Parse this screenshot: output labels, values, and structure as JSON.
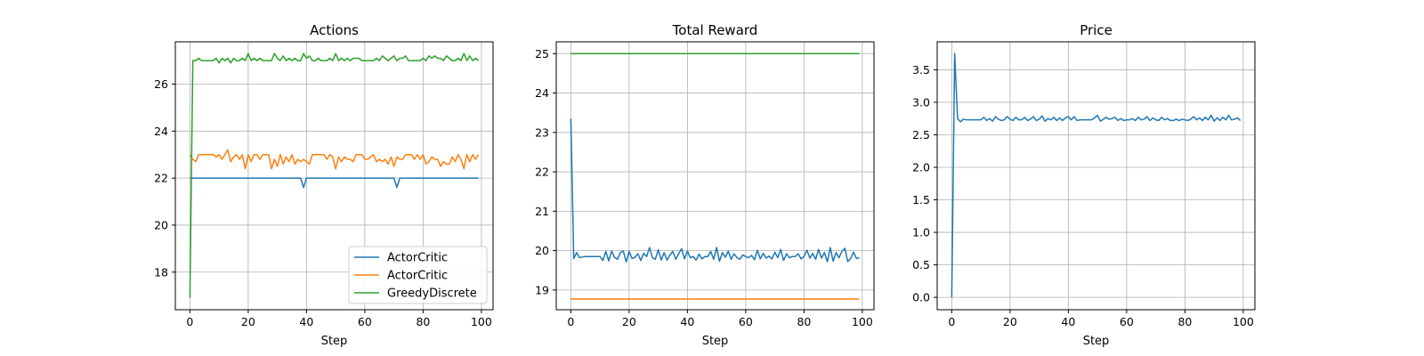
{
  "chart_data": [
    {
      "type": "line",
      "title": "Actions",
      "xlabel": "Step",
      "ylabel": "",
      "xlim": [
        -5,
        104
      ],
      "ylim": [
        16.4,
        27.8
      ],
      "xticks": [
        0,
        20,
        40,
        60,
        80,
        100
      ],
      "yticks": [
        18,
        20,
        22,
        24,
        26
      ],
      "grid": true,
      "legend": "lower-right",
      "series": [
        {
          "name": "ActorCritic",
          "color": "#1f77b4",
          "base": 22.0,
          "x": [
            0,
            1,
            2,
            3,
            4,
            5,
            6,
            7,
            8,
            9,
            10,
            11,
            12,
            13,
            14,
            15,
            16,
            17,
            18,
            19,
            20,
            21,
            22,
            23,
            24,
            25,
            26,
            27,
            28,
            29,
            30,
            31,
            32,
            33,
            34,
            35,
            36,
            37,
            38,
            39,
            40,
            41,
            42,
            43,
            44,
            45,
            46,
            47,
            48,
            49,
            50,
            51,
            52,
            53,
            54,
            55,
            56,
            57,
            58,
            59,
            60,
            61,
            62,
            63,
            64,
            65,
            66,
            67,
            68,
            69,
            70,
            71,
            72,
            73,
            74,
            75,
            76,
            77,
            78,
            79,
            80,
            81,
            82,
            83,
            84,
            85,
            86,
            87,
            88,
            89,
            90,
            91,
            92,
            93,
            94,
            95,
            96,
            97,
            98,
            99
          ],
          "deviations": {
            "39": 21.6,
            "71": 21.6
          }
        },
        {
          "name": "ActorCritic",
          "color": "#ff7f0e",
          "base": 23.0,
          "deviations": {
            "1": 22.8,
            "2": 22.7,
            "9": 22.9,
            "11": 22.8,
            "13": 23.2,
            "14": 22.7,
            "15": 22.9,
            "17": 22.8,
            "19": 22.4,
            "20": 23.0,
            "21": 22.7,
            "24": 22.8,
            "28": 22.4,
            "29": 22.8,
            "30": 22.5,
            "31": 23.0,
            "32": 22.6,
            "33": 22.9,
            "34": 22.7,
            "36": 22.6,
            "37": 22.8,
            "38": 22.7,
            "39": 22.8,
            "40": 22.7,
            "41": 22.6,
            "47": 22.8,
            "49": 22.9,
            "50": 22.4,
            "51": 22.9,
            "52": 22.7,
            "53": 22.9,
            "54": 22.8,
            "55": 22.8,
            "56": 22.7,
            "60": 22.8,
            "61": 22.8,
            "62": 22.9,
            "64": 22.7,
            "65": 22.8,
            "66": 22.7,
            "67": 22.8,
            "68": 22.6,
            "69": 22.9,
            "70": 22.5,
            "71": 22.9,
            "72": 22.8,
            "73": 22.8,
            "77": 22.8,
            "79": 22.8,
            "81": 22.6,
            "82": 22.7,
            "83": 22.9,
            "84": 22.8,
            "85": 22.8,
            "86": 22.5,
            "87": 22.7,
            "88": 22.6,
            "89": 22.6,
            "90": 22.9,
            "91": 22.7,
            "93": 22.8,
            "94": 22.4,
            "96": 22.7,
            "97": 23.0,
            "98": 22.8
          }
        },
        {
          "name": "GreedyDiscrete",
          "color": "#2ca02c",
          "base": 27.0,
          "deviations": {
            "0": 16.9,
            "2": 27.0,
            "3": 27.1,
            "8": 27.0,
            "9": 27.1,
            "10": 26.9,
            "11": 27.1,
            "12": 27.0,
            "13": 27.1,
            "14": 26.9,
            "15": 27.1,
            "16": 27.0,
            "18": 27.1,
            "20": 27.3,
            "21": 27.0,
            "22": 27.1,
            "24": 27.1,
            "25": 27.0,
            "29": 27.3,
            "30": 27.1,
            "31": 27.0,
            "32": 27.2,
            "33": 27.0,
            "34": 27.1,
            "35": 27.0,
            "36": 27.1,
            "39": 27.3,
            "40": 27.1,
            "41": 27.2,
            "42": 27.0,
            "44": 27.1,
            "48": 27.1,
            "50": 27.3,
            "51": 27.0,
            "52": 27.1,
            "54": 27.1,
            "55": 27.0,
            "56": 27.1,
            "57": 27.1,
            "58": 27.1,
            "64": 27.1,
            "65": 27.0,
            "66": 27.2,
            "67": 27.1,
            "68": 27.0,
            "69": 27.1,
            "70": 27.2,
            "71": 27.0,
            "72": 27.1,
            "73": 27.1,
            "74": 27.2,
            "75": 27.0,
            "77": 27.0,
            "80": 27.1,
            "81": 27.0,
            "82": 27.2,
            "83": 27.1,
            "84": 27.2,
            "85": 27.1,
            "86": 27.1,
            "87": 27.0,
            "88": 27.2,
            "89": 27.1,
            "90": 27.0,
            "92": 27.1,
            "93": 27.0,
            "94": 27.3,
            "95": 27.0,
            "96": 27.2,
            "97": 27.0,
            "98": 27.1,
            "99": 27.0
          }
        }
      ]
    },
    {
      "type": "line",
      "title": "Total Reward",
      "xlabel": "Step",
      "ylabel": "",
      "xlim": [
        -5,
        104
      ],
      "ylim": [
        18.5,
        25.3
      ],
      "xticks": [
        0,
        20,
        40,
        60,
        80,
        100
      ],
      "yticks": [
        19,
        20,
        21,
        22,
        23,
        24,
        25
      ],
      "grid": true,
      "legend": "none",
      "series": [
        {
          "name": "ActorCritic",
          "color": "#1f77b4",
          "base": 19.85,
          "deviations": {
            "0": 23.35,
            "1": 19.8,
            "2": 19.95,
            "3": 19.82,
            "4": 19.84,
            "11": 19.75,
            "12": 19.98,
            "13": 19.74,
            "14": 19.99,
            "15": 19.83,
            "16": 19.78,
            "17": 19.95,
            "18": 19.99,
            "19": 19.71,
            "20": 19.98,
            "21": 19.8,
            "22": 19.83,
            "23": 19.92,
            "24": 19.75,
            "25": 19.93,
            "26": 19.85,
            "27": 20.08,
            "28": 19.82,
            "29": 19.78,
            "30": 20.02,
            "31": 19.76,
            "32": 19.95,
            "33": 19.76,
            "34": 19.89,
            "35": 19.98,
            "36": 19.78,
            "37": 19.92,
            "38": 20.05,
            "39": 19.79,
            "40": 19.99,
            "41": 19.82,
            "43": 19.76,
            "44": 19.91,
            "45": 19.79,
            "48": 19.98,
            "49": 19.78,
            "50": 20.08,
            "51": 19.73,
            "52": 19.95,
            "53": 19.83,
            "54": 19.99,
            "55": 19.78,
            "56": 19.92,
            "57": 19.82,
            "58": 19.78,
            "59": 19.89,
            "61": 19.82,
            "62": 19.88,
            "63": 19.77,
            "64": 20.01,
            "65": 19.79,
            "66": 19.93,
            "67": 19.81,
            "68": 19.86,
            "69": 19.79,
            "70": 19.96,
            "71": 19.82,
            "72": 20.03,
            "73": 19.75,
            "74": 19.92,
            "75": 19.82,
            "78": 19.92,
            "79": 19.79,
            "80": 19.85,
            "81": 20.01,
            "82": 19.81,
            "83": 19.93,
            "84": 19.78,
            "85": 20.03,
            "86": 19.81,
            "87": 19.95,
            "88": 19.72,
            "89": 20.08,
            "90": 19.73,
            "91": 19.95,
            "92": 19.82,
            "93": 19.98,
            "94": 20.06,
            "95": 19.72,
            "96": 19.8,
            "97": 19.96,
            "98": 19.8,
            "99": 19.82
          }
        },
        {
          "name": "ActorCritic",
          "color": "#ff7f0e",
          "base": 18.77,
          "deviations": {}
        },
        {
          "name": "GreedyDiscrete",
          "color": "#2ca02c",
          "base": 25.0,
          "deviations": {}
        }
      ]
    },
    {
      "type": "line",
      "title": "Price",
      "xlabel": "Step",
      "ylabel": "",
      "xlim": [
        -5,
        104
      ],
      "ylim": [
        -0.19,
        3.93
      ],
      "xticks": [
        0,
        20,
        40,
        60,
        80,
        100
      ],
      "yticks": [
        0.0,
        0.5,
        1.0,
        1.5,
        2.0,
        2.5,
        3.0,
        3.5
      ],
      "ytick_labels": [
        "0.0",
        "0.5",
        "1.0",
        "1.5",
        "2.0",
        "2.5",
        "3.0",
        "3.5"
      ],
      "grid": true,
      "legend": "none",
      "series": [
        {
          "name": "",
          "color": "#1f77b4",
          "base": 2.73,
          "deviations": {
            "0": 0.0,
            "1": 3.75,
            "2": 2.75,
            "3": 2.7,
            "4": 2.74,
            "11": 2.77,
            "12": 2.72,
            "13": 2.75,
            "14": 2.71,
            "15": 2.78,
            "16": 2.74,
            "17": 2.72,
            "18": 2.73,
            "19": 2.78,
            "20": 2.74,
            "21": 2.72,
            "22": 2.77,
            "23": 2.73,
            "24": 2.73,
            "25": 2.77,
            "26": 2.72,
            "27": 2.74,
            "28": 2.78,
            "29": 2.72,
            "30": 2.74,
            "31": 2.79,
            "32": 2.71,
            "33": 2.75,
            "34": 2.73,
            "35": 2.77,
            "36": 2.72,
            "37": 2.76,
            "38": 2.72,
            "39": 2.76,
            "40": 2.78,
            "41": 2.73,
            "42": 2.78,
            "43": 2.72,
            "44": 2.73,
            "49": 2.76,
            "50": 2.8,
            "51": 2.71,
            "52": 2.74,
            "53": 2.77,
            "54": 2.74,
            "55": 2.75,
            "56": 2.77,
            "57": 2.72,
            "58": 2.75,
            "59": 2.72,
            "62": 2.75,
            "63": 2.72,
            "64": 2.77,
            "65": 2.73,
            "66": 2.74,
            "67": 2.78,
            "68": 2.72,
            "69": 2.76,
            "70": 2.73,
            "71": 2.72,
            "72": 2.77,
            "73": 2.73,
            "74": 2.75,
            "75": 2.72,
            "76": 2.72,
            "77": 2.74,
            "78": 2.72,
            "79": 2.74,
            "81": 2.72,
            "82": 2.74,
            "83": 2.78,
            "84": 2.73,
            "85": 2.76,
            "86": 2.72,
            "87": 2.77,
            "88": 2.73,
            "89": 2.8,
            "90": 2.71,
            "91": 2.76,
            "92": 2.72,
            "93": 2.77,
            "94": 2.73,
            "95": 2.8,
            "96": 2.73,
            "97": 2.74,
            "98": 2.76,
            "99": 2.72
          }
        }
      ]
    }
  ]
}
